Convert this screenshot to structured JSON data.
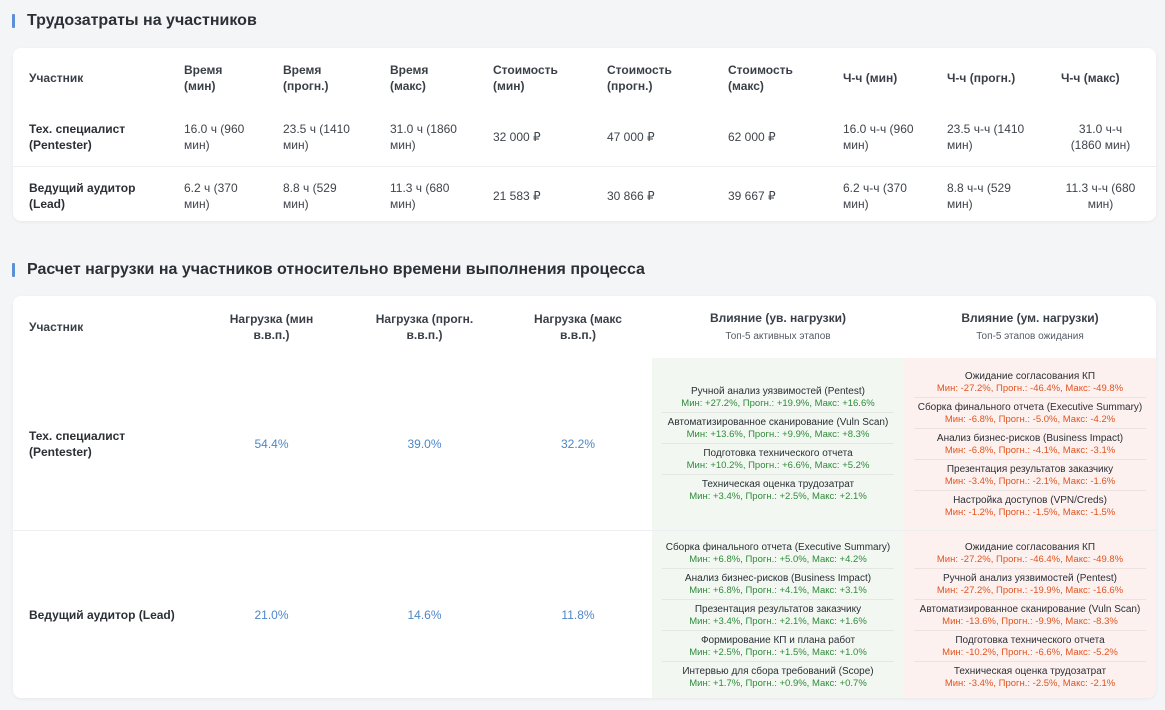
{
  "section1": {
    "title": "Трудозатраты на участников",
    "headers": [
      "Участник",
      "Время\n(мин)",
      "Время\n(прогн.)",
      "Время\n(макс)",
      "Стоимость\n(мин)",
      "Стоимость\n(прогн.)",
      "Стоимость\n(макс)",
      "Ч-ч (мин)",
      "Ч-ч (прогн.)",
      "Ч-ч (макс)"
    ],
    "rows": [
      [
        "Тех. специалист\n(Pentester)",
        "16.0 ч (960\nмин)",
        "23.5 ч (1410\nмин)",
        "31.0 ч (1860\nмин)",
        "32 000 ₽",
        "47 000 ₽",
        "62 000 ₽",
        "16.0 ч-ч (960\nмин)",
        "23.5 ч-ч (1410\nмин)",
        "31.0 ч-ч\n(1860 мин)"
      ],
      [
        "Ведущий аудитор\n(Lead)",
        "6.2 ч (370\nмин)",
        "8.8 ч (529\nмин)",
        "11.3 ч (680\nмин)",
        "21 583 ₽",
        "30 866 ₽",
        "39 667 ₽",
        "6.2 ч-ч (370\nмин)",
        "8.8 ч-ч (529\nмин)",
        "11.3 ч-ч (680\nмин)"
      ]
    ]
  },
  "section2": {
    "title": "Расчет нагрузки на участников относительно времени выполнения процесса",
    "headers": {
      "participant": "Участник",
      "load_min": "Нагрузка (мин\nв.в.п.)",
      "load_forecast": "Нагрузка (прогн.\nв.в.п.)",
      "load_max": "Нагрузка (макс\nв.в.п.)",
      "impact_up": "Влияние (ув. нагрузки)",
      "impact_up_sub": "Топ-5 активных этапов",
      "impact_down": "Влияние (ум. нагрузки)",
      "impact_down_sub": "Топ-5 этапов ожидания"
    },
    "rows": [
      {
        "name": "Тех. специалист\n(Pentester)",
        "load_min": "54.4%",
        "load_forecast": "39.0%",
        "load_max": "32.2%",
        "impact_up": [
          {
            "name": "Ручной анализ уязвимостей (Pentest)",
            "values": "Мин: +27.2%, Прогн.: +19.9%, Макс: +16.6%"
          },
          {
            "name": "Автоматизированное сканирование (Vuln Scan)",
            "values": "Мин: +13.6%, Прогн.: +9.9%, Макс: +8.3%"
          },
          {
            "name": "Подготовка технического отчета",
            "values": "Мин: +10.2%, Прогн.: +6.6%, Макс: +5.2%"
          },
          {
            "name": "Техническая оценка трудозатрат",
            "values": "Мин: +3.4%, Прогн.: +2.5%, Макс: +2.1%"
          }
        ],
        "impact_down": [
          {
            "name": "Ожидание согласования КП",
            "values": "Мин: -27.2%, Прогн.: -46.4%, Макс: -49.8%"
          },
          {
            "name": "Сборка финального отчета (Executive Summary)",
            "values": "Мин: -6.8%, Прогн.: -5.0%, Макс: -4.2%"
          },
          {
            "name": "Анализ бизнес-рисков (Business Impact)",
            "values": "Мин: -6.8%, Прогн.: -4.1%, Макс: -3.1%"
          },
          {
            "name": "Презентация результатов заказчику",
            "values": "Мин: -3.4%, Прогн.: -2.1%, Макс: -1.6%"
          },
          {
            "name": "Настройка доступов (VPN/Creds)",
            "values": "Мин: -1.2%, Прогн.: -1.5%, Макс: -1.5%"
          }
        ]
      },
      {
        "name": "Ведущий аудитор (Lead)",
        "load_min": "21.0%",
        "load_forecast": "14.6%",
        "load_max": "11.8%",
        "impact_up": [
          {
            "name": "Сборка финального отчета (Executive Summary)",
            "values": "Мин: +6.8%, Прогн.: +5.0%, Макс: +4.2%"
          },
          {
            "name": "Анализ бизнес-рисков (Business Impact)",
            "values": "Мин: +6.8%, Прогн.: +4.1%, Макс: +3.1%"
          },
          {
            "name": "Презентация результатов заказчику",
            "values": "Мин: +3.4%, Прогн.: +2.1%, Макс: +1.6%"
          },
          {
            "name": "Формирование КП и плана работ",
            "values": "Мин: +2.5%, Прогн.: +1.5%, Макс: +1.0%"
          },
          {
            "name": "Интервью для сбора требований (Scope)",
            "values": "Мин: +1.7%, Прогн.: +0.9%, Макс: +0.7%"
          }
        ],
        "impact_down": [
          {
            "name": "Ожидание согласования КП",
            "values": "Мин: -27.2%, Прогн.: -46.4%, Макс: -49.8%"
          },
          {
            "name": "Ручной анализ уязвимостей (Pentest)",
            "values": "Мин: -27.2%, Прогн.: -19.9%, Макс: -16.6%"
          },
          {
            "name": "Автоматизированное сканирование (Vuln Scan)",
            "values": "Мин: -13.6%, Прогн.: -9.9%, Макс: -8.3%"
          },
          {
            "name": "Подготовка технического отчета",
            "values": "Мин: -10.2%, Прогн.: -6.6%, Макс: -5.2%"
          },
          {
            "name": "Техническая оценка трудозатрат",
            "values": "Мин: -3.4%, Прогн.: -2.5%, Макс: -2.1%"
          }
        ]
      }
    ]
  },
  "colors": {
    "accent": "#5b8fd6",
    "load_value": "#4d86c8",
    "positive": "#2f8a3a",
    "negative": "#e0541f",
    "positive_bg": "#f2f8f1",
    "negative_bg": "#fdf1ef"
  }
}
